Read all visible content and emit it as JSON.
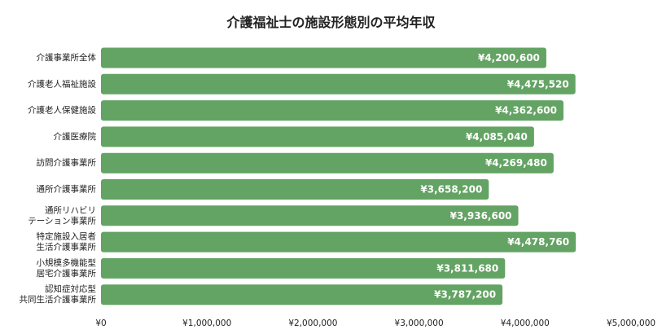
{
  "chart_data": {
    "type": "bar",
    "orientation": "horizontal",
    "title": "介護福祉士の施設形態別の平均年収",
    "xlabel": "",
    "ylabel": "",
    "categories": [
      [
        "介護事業所全体"
      ],
      [
        "介護老人福祉施設"
      ],
      [
        "介護老人保健施設"
      ],
      [
        "介護医療院"
      ],
      [
        "訪問介護事業所"
      ],
      [
        "通所介護事業所"
      ],
      [
        "通所リハビリ",
        "テーション事業所"
      ],
      [
        "特定施設入居者",
        "生活介護事業所"
      ],
      [
        "小規模多機能型",
        "居宅介護事業所"
      ],
      [
        "認知症対応型",
        "共同生活介護事業所"
      ]
    ],
    "values": [
      4200600,
      4475520,
      4362600,
      4085040,
      4269480,
      3658200,
      3936600,
      4478760,
      3811680,
      3787200
    ],
    "value_labels": [
      "¥4,200,600",
      "¥4,475,520",
      "¥4,362,600",
      "¥4,085,040",
      "¥4,269,480",
      "¥3,658,200",
      "¥3,936,600",
      "¥4,478,760",
      "¥3,811,680",
      "¥3,787,200"
    ],
    "xlim": [
      0,
      5000000
    ],
    "x_ticks": [
      0,
      1000000,
      2000000,
      3000000,
      4000000,
      5000000
    ],
    "x_tick_labels": [
      "¥0",
      "¥1,000,000",
      "¥2,000,000",
      "¥3,000,000",
      "¥4,000,000",
      "¥5,000,000"
    ],
    "bar_color": "#63a363",
    "label_color": "#ffffff",
    "grid": false,
    "legend": "none"
  }
}
